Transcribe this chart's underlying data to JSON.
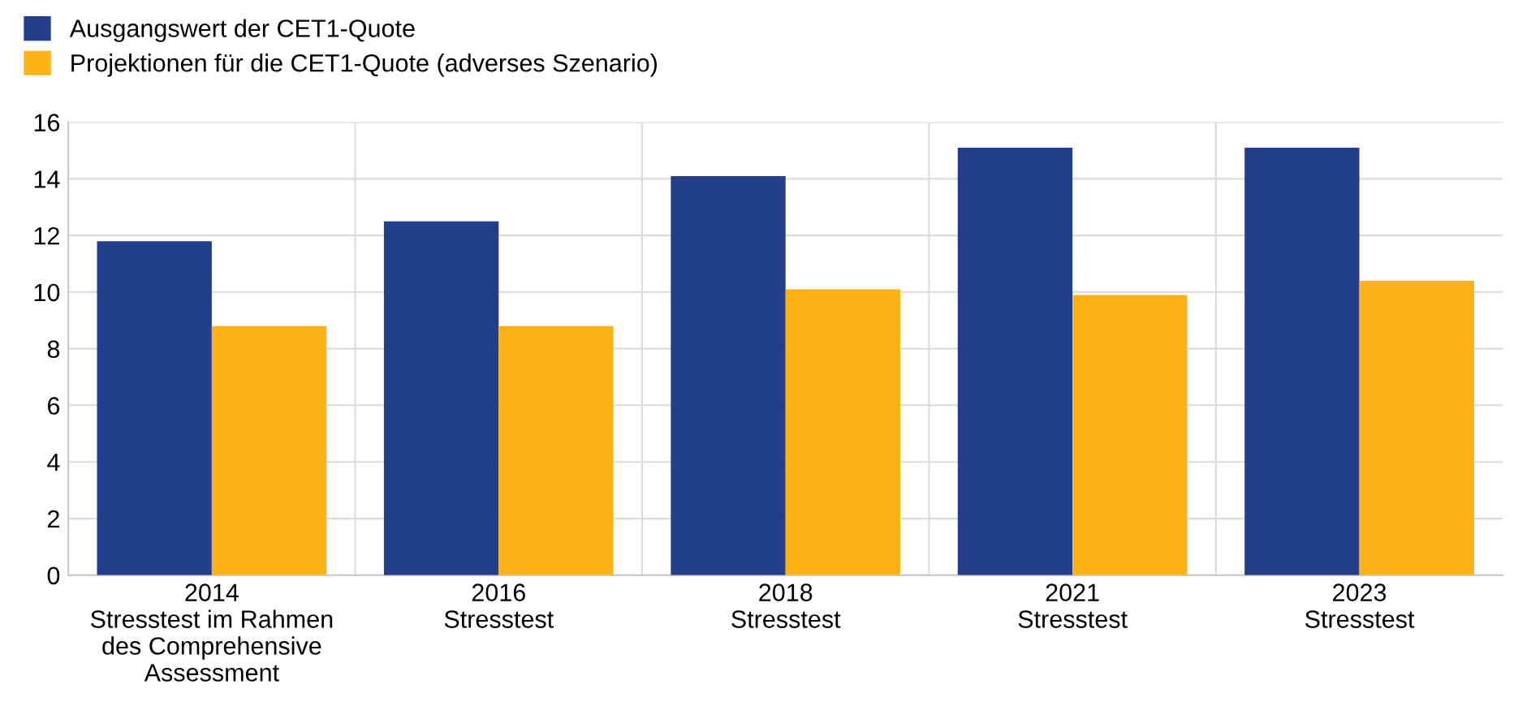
{
  "chart_data": {
    "type": "bar",
    "categories": [
      "2014\nStresstest im Rahmen\ndes Comprehensive\nAssessment",
      "2016\nStresstest",
      "2018\nStresstest",
      "2021\nStresstest",
      "2023\nStresstest"
    ],
    "series": [
      {
        "name": "Ausgangswert der CET1-Quote",
        "color": "#233e8b",
        "values": [
          11.8,
          12.5,
          14.1,
          15.1,
          15.1
        ]
      },
      {
        "name": "Projektionen für die CET1-Quote (adverses Szenario)",
        "color": "#fdb218",
        "values": [
          8.8,
          8.8,
          10.1,
          9.9,
          10.4
        ]
      }
    ],
    "ylim": [
      0,
      16
    ],
    "yticks": [
      0,
      2,
      4,
      6,
      8,
      10,
      12,
      14,
      16
    ],
    "grid": true,
    "legend": "top left"
  }
}
